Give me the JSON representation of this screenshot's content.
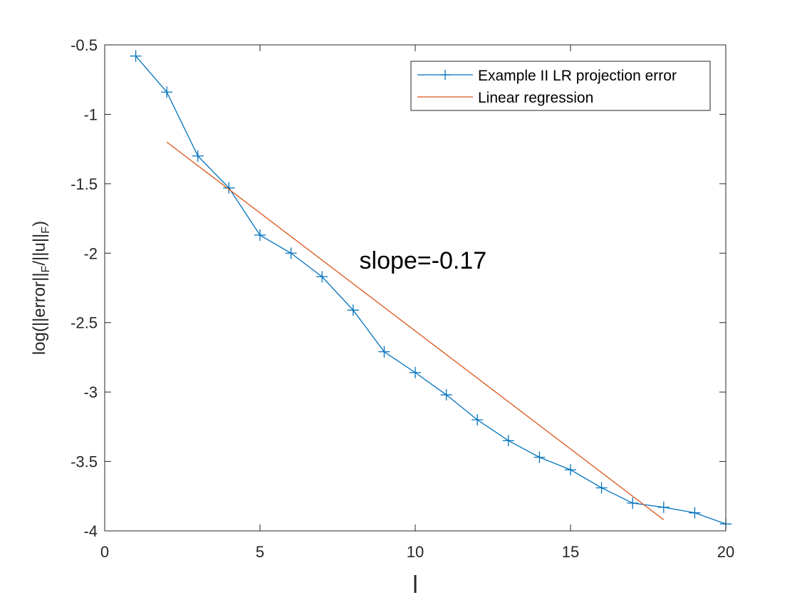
{
  "chart_data": {
    "type": "line",
    "title": "",
    "xlabel": "l",
    "ylabel": {
      "prefix": "log(||error||",
      "sub1": "F",
      "middle": "/||u||",
      "sub2": "F",
      "suffix": ")"
    },
    "xlim": [
      0,
      20
    ],
    "ylim": [
      -4,
      -0.5
    ],
    "xticks": [
      0,
      5,
      10,
      15,
      20
    ],
    "xtick_labels": [
      "0",
      "5",
      "10",
      "15",
      "20"
    ],
    "yticks": [
      -4,
      -3.5,
      -3,
      -2.5,
      -2,
      -1.5,
      -1,
      -0.5
    ],
    "ytick_labels": [
      "-4",
      "-3.5",
      "-3",
      "-2.5",
      "-2",
      "-1.5",
      "-1",
      "-0.5"
    ],
    "grid": false,
    "legend_position": "top-right",
    "series": [
      {
        "name": "Example II LR projection error",
        "color": "#0072BD",
        "marker": "plus",
        "x": [
          1,
          2,
          3,
          4,
          5,
          6,
          7,
          8,
          9,
          10,
          11,
          12,
          13,
          14,
          15,
          16,
          17,
          18,
          19,
          20
        ],
        "y": [
          -0.58,
          -0.84,
          -1.3,
          -1.53,
          -1.87,
          -2.0,
          -2.17,
          -2.41,
          -2.71,
          -2.86,
          -3.02,
          -3.2,
          -3.35,
          -3.47,
          -3.56,
          -3.69,
          -3.8,
          -3.83,
          -3.87,
          -3.95
        ]
      },
      {
        "name": "Linear regression",
        "color": "#D95319",
        "marker": "none",
        "x": [
          2,
          18
        ],
        "y": [
          -1.2,
          -3.92
        ]
      }
    ],
    "annotations": [
      {
        "text": "slope=-0.17",
        "x": 8.2,
        "y": -2.05
      }
    ]
  }
}
